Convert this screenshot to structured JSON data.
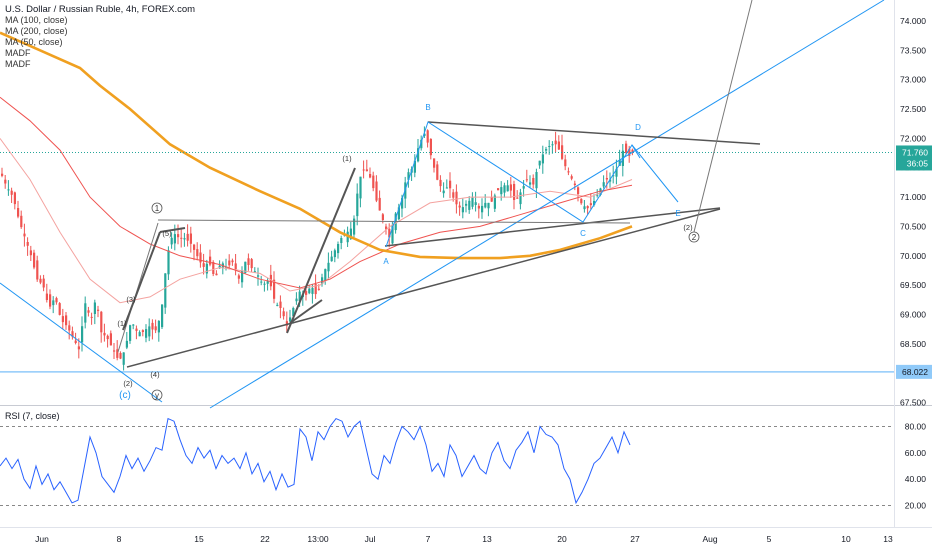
{
  "header": {
    "title": "U.S. Dollar / Russian Ruble, 4h, FOREX.com",
    "indicators": [
      "MA (100, close)",
      "MA (200, close)",
      "MA (50, close)",
      "MADF",
      "MADF"
    ]
  },
  "rsi": {
    "legend": "RSI (7, close)"
  },
  "price_scale": {
    "ticks": [
      "74.000",
      "73.500",
      "73.000",
      "72.500",
      "72.000",
      "71.500",
      "71.000",
      "70.500",
      "70.000",
      "69.500",
      "69.000",
      "68.500",
      "68.000",
      "67.500"
    ],
    "last_price": "71.760",
    "countdown": "36:05",
    "level_label": "68.022"
  },
  "rsi_scale": {
    "ticks": [
      "80.00",
      "60.00",
      "40.00",
      "20.00"
    ]
  },
  "time_axis": {
    "labels": [
      "Jun",
      "8",
      "15",
      "22",
      "13:00",
      "Jul",
      "7",
      "13",
      "20",
      "27",
      "Aug",
      "5",
      "10",
      "13"
    ]
  },
  "wave_labels": {
    "circle_1": "1",
    "circle_2": "2",
    "circle_y": "y",
    "c_blue": "(c)",
    "p1_a": "(1)",
    "p1_b": "(1)",
    "p2_a": "(2)",
    "p2_b": "(2)",
    "p3": "(3)",
    "p4": "(4)",
    "p5": "(5)",
    "A": "A",
    "B": "B",
    "C": "C",
    "D": "D",
    "E": "E"
  },
  "colors": {
    "up": "#26a69a",
    "down": "#ef5350",
    "ma100": "#ef5350",
    "ma200": "#f0a020",
    "ma50": "#f4a3a0",
    "rsi": "#2962ff",
    "blue_line": "#2196f3",
    "level_line": "#90caf9",
    "price_line": "#26a69a"
  },
  "chart_data": {
    "type": "candlestick",
    "symbol": "USDRUB",
    "timeframe": "4h",
    "y_range": [
      67.5,
      74.0
    ],
    "last_price": 71.76,
    "horizontal_level": 68.022,
    "price_path": [
      [
        0,
        71.4
      ],
      [
        5,
        71.2
      ],
      [
        12,
        71.0
      ],
      [
        18,
        70.6
      ],
      [
        24,
        70.3
      ],
      [
        30,
        70.0
      ],
      [
        36,
        69.6
      ],
      [
        42,
        69.5
      ],
      [
        48,
        69.1
      ],
      [
        54,
        69.3
      ],
      [
        60,
        68.9
      ],
      [
        66,
        68.8
      ],
      [
        72,
        68.6
      ],
      [
        78,
        68.4
      ],
      [
        84,
        69.2
      ],
      [
        90,
        68.9
      ],
      [
        95,
        69.3
      ],
      [
        100,
        68.7
      ],
      [
        106,
        68.6
      ],
      [
        112,
        68.4
      ],
      [
        118,
        68.2
      ],
      [
        124,
        68.4
      ],
      [
        130,
        68.9
      ],
      [
        136,
        68.7
      ],
      [
        142,
        68.7
      ],
      [
        148,
        68.8
      ],
      [
        154,
        68.7
      ],
      [
        160,
        69.0
      ],
      [
        166,
        70.0
      ],
      [
        172,
        70.4
      ],
      [
        178,
        70.3
      ],
      [
        184,
        70.3
      ],
      [
        190,
        70.2
      ],
      [
        196,
        70.0
      ],
      [
        202,
        69.8
      ],
      [
        208,
        69.9
      ],
      [
        214,
        69.6
      ],
      [
        220,
        69.9
      ],
      [
        226,
        69.8
      ],
      [
        232,
        69.9
      ],
      [
        238,
        69.6
      ],
      [
        244,
        69.9
      ],
      [
        250,
        69.8
      ],
      [
        256,
        69.7
      ],
      [
        262,
        69.5
      ],
      [
        268,
        69.6
      ],
      [
        274,
        69.2
      ],
      [
        280,
        69.1
      ],
      [
        286,
        68.8
      ],
      [
        292,
        69.1
      ],
      [
        298,
        69.4
      ],
      [
        304,
        69.3
      ],
      [
        310,
        69.5
      ],
      [
        316,
        69.3
      ],
      [
        322,
        69.7
      ],
      [
        328,
        69.9
      ],
      [
        334,
        70.1
      ],
      [
        340,
        70.3
      ],
      [
        346,
        70.4
      ],
      [
        352,
        70.5
      ],
      [
        358,
        71.3
      ],
      [
        364,
        71.5
      ],
      [
        370,
        71.3
      ],
      [
        376,
        70.9
      ],
      [
        382,
        70.6
      ],
      [
        388,
        70.3
      ],
      [
        394,
        70.7
      ],
      [
        400,
        70.9
      ],
      [
        406,
        71.4
      ],
      [
        412,
        71.5
      ],
      [
        418,
        71.9
      ],
      [
        424,
        72.1
      ],
      [
        430,
        71.7
      ],
      [
        436,
        71.3
      ],
      [
        442,
        71.1
      ],
      [
        448,
        71.2
      ],
      [
        454,
        70.9
      ],
      [
        460,
        70.8
      ],
      [
        466,
        70.9
      ],
      [
        472,
        71.0
      ],
      [
        478,
        70.8
      ],
      [
        484,
        70.9
      ],
      [
        490,
        70.9
      ],
      [
        496,
        71.1
      ],
      [
        502,
        71.2
      ],
      [
        508,
        71.2
      ],
      [
        514,
        70.9
      ],
      [
        520,
        71.1
      ],
      [
        526,
        71.3
      ],
      [
        532,
        71.2
      ],
      [
        538,
        71.6
      ],
      [
        544,
        71.8
      ],
      [
        550,
        71.9
      ],
      [
        556,
        71.9
      ],
      [
        562,
        71.6
      ],
      [
        568,
        71.4
      ],
      [
        574,
        71.2
      ],
      [
        580,
        70.9
      ],
      [
        586,
        70.8
      ],
      [
        592,
        70.9
      ],
      [
        598,
        71.1
      ],
      [
        604,
        71.3
      ],
      [
        610,
        71.3
      ],
      [
        616,
        71.5
      ],
      [
        622,
        71.8
      ],
      [
        628,
        71.7
      ],
      [
        632,
        71.76
      ]
    ],
    "ma200": [
      [
        0,
        73.8
      ],
      [
        40,
        73.5
      ],
      [
        80,
        73.2
      ],
      [
        100,
        72.9
      ],
      [
        130,
        72.5
      ],
      [
        170,
        71.9
      ],
      [
        210,
        71.5
      ],
      [
        260,
        71.1
      ],
      [
        300,
        70.8
      ],
      [
        340,
        70.4
      ],
      [
        380,
        70.1
      ],
      [
        420,
        69.98
      ],
      [
        460,
        69.96
      ],
      [
        500,
        69.96
      ],
      [
        530,
        70.0
      ],
      [
        560,
        70.1
      ],
      [
        600,
        70.3
      ],
      [
        632,
        70.5
      ]
    ],
    "ma100": [
      [
        0,
        72.7
      ],
      [
        30,
        72.3
      ],
      [
        60,
        71.8
      ],
      [
        90,
        71.0
      ],
      [
        120,
        70.5
      ],
      [
        150,
        70.2
      ],
      [
        180,
        70.0
      ],
      [
        220,
        69.85
      ],
      [
        260,
        69.6
      ],
      [
        300,
        69.45
      ],
      [
        330,
        69.6
      ],
      [
        360,
        69.9
      ],
      [
        400,
        70.2
      ],
      [
        440,
        70.4
      ],
      [
        480,
        70.5
      ],
      [
        520,
        70.7
      ],
      [
        560,
        70.9
      ],
      [
        600,
        71.1
      ],
      [
        632,
        71.2
      ]
    ],
    "ma50": [
      [
        0,
        72.0
      ],
      [
        30,
        71.3
      ],
      [
        60,
        70.4
      ],
      [
        90,
        69.6
      ],
      [
        120,
        69.2
      ],
      [
        150,
        69.3
      ],
      [
        180,
        69.6
      ],
      [
        220,
        69.8
      ],
      [
        260,
        69.7
      ],
      [
        290,
        69.4
      ],
      [
        320,
        69.5
      ],
      [
        350,
        69.9
      ],
      [
        390,
        70.5
      ],
      [
        430,
        70.9
      ],
      [
        470,
        71.0
      ],
      [
        510,
        71.0
      ],
      [
        550,
        71.1
      ],
      [
        590,
        71.0
      ],
      [
        632,
        71.3
      ]
    ],
    "rsi": [
      [
        0,
        50
      ],
      [
        6,
        56
      ],
      [
        12,
        48
      ],
      [
        18,
        55
      ],
      [
        24,
        40
      ],
      [
        30,
        33
      ],
      [
        36,
        50
      ],
      [
        42,
        36
      ],
      [
        48,
        44
      ],
      [
        54,
        32
      ],
      [
        60,
        38
      ],
      [
        66,
        30
      ],
      [
        72,
        22
      ],
      [
        78,
        24
      ],
      [
        84,
        48
      ],
      [
        90,
        72
      ],
      [
        96,
        60
      ],
      [
        102,
        42
      ],
      [
        108,
        36
      ],
      [
        114,
        30
      ],
      [
        120,
        42
      ],
      [
        126,
        58
      ],
      [
        132,
        48
      ],
      [
        138,
        56
      ],
      [
        144,
        46
      ],
      [
        150,
        54
      ],
      [
        156,
        64
      ],
      [
        162,
        62
      ],
      [
        168,
        86
      ],
      [
        174,
        84
      ],
      [
        180,
        70
      ],
      [
        186,
        58
      ],
      [
        192,
        52
      ],
      [
        198,
        64
      ],
      [
        204,
        56
      ],
      [
        210,
        62
      ],
      [
        216,
        48
      ],
      [
        222,
        58
      ],
      [
        228,
        52
      ],
      [
        234,
        56
      ],
      [
        240,
        48
      ],
      [
        246,
        60
      ],
      [
        252,
        44
      ],
      [
        258,
        52
      ],
      [
        264,
        38
      ],
      [
        270,
        46
      ],
      [
        276,
        32
      ],
      [
        282,
        44
      ],
      [
        288,
        34
      ],
      [
        294,
        36
      ],
      [
        300,
        78
      ],
      [
        306,
        72
      ],
      [
        312,
        54
      ],
      [
        318,
        76
      ],
      [
        324,
        70
      ],
      [
        330,
        80
      ],
      [
        336,
        86
      ],
      [
        342,
        84
      ],
      [
        348,
        72
      ],
      [
        354,
        80
      ],
      [
        360,
        84
      ],
      [
        366,
        64
      ],
      [
        372,
        44
      ],
      [
        378,
        40
      ],
      [
        384,
        58
      ],
      [
        390,
        52
      ],
      [
        396,
        68
      ],
      [
        402,
        80
      ],
      [
        408,
        76
      ],
      [
        414,
        70
      ],
      [
        420,
        80
      ],
      [
        426,
        66
      ],
      [
        432,
        46
      ],
      [
        438,
        52
      ],
      [
        444,
        42
      ],
      [
        450,
        66
      ],
      [
        456,
        58
      ],
      [
        462,
        42
      ],
      [
        468,
        50
      ],
      [
        474,
        58
      ],
      [
        480,
        48
      ],
      [
        486,
        44
      ],
      [
        492,
        60
      ],
      [
        498,
        68
      ],
      [
        504,
        54
      ],
      [
        510,
        48
      ],
      [
        516,
        62
      ],
      [
        522,
        68
      ],
      [
        528,
        76
      ],
      [
        534,
        60
      ],
      [
        540,
        80
      ],
      [
        546,
        74
      ],
      [
        552,
        72
      ],
      [
        558,
        66
      ],
      [
        564,
        48
      ],
      [
        570,
        40
      ],
      [
        576,
        22
      ],
      [
        582,
        30
      ],
      [
        588,
        40
      ],
      [
        594,
        52
      ],
      [
        600,
        56
      ],
      [
        606,
        64
      ],
      [
        612,
        72
      ],
      [
        618,
        60
      ],
      [
        624,
        76
      ],
      [
        630,
        66
      ]
    ]
  }
}
